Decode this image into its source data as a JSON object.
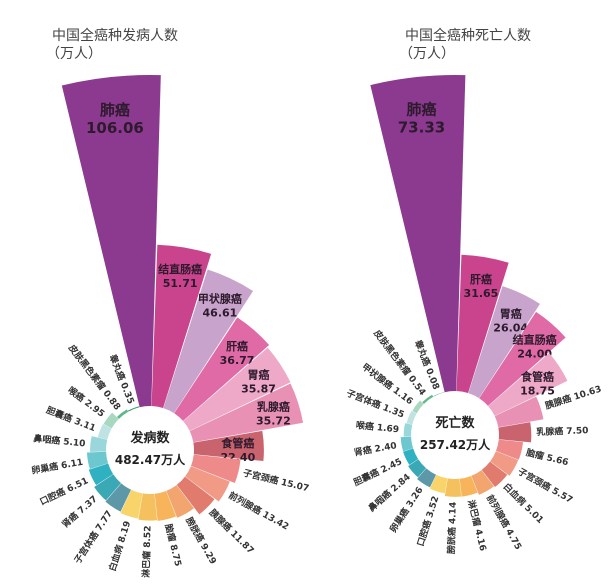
{
  "chart_data": [
    {
      "type": "radial_bar",
      "title": "中国全癌种发病人数",
      "subtitle": "（万人）",
      "center_label": "发病数",
      "total": {
        "value": 482.47,
        "label": "482.47万人"
      },
      "categories": [
        "肺癌",
        "结直肠癌",
        "甲状腺癌",
        "肝癌",
        "胃癌",
        "乳腺癌",
        "食管癌",
        "子宫颈癌",
        "前列腺癌",
        "胰腺癌",
        "膀胱癌",
        "脑瘤",
        "淋巴瘤",
        "白血病",
        "子宫体癌",
        "肾癌",
        "口腔癌",
        "卵巢癌",
        "鼻咽癌",
        "胆囊癌",
        "喉癌",
        "皮肤黑色素瘤",
        "睾丸癌"
      ],
      "values": [
        106.06,
        51.71,
        46.61,
        36.77,
        35.87,
        35.72,
        22.4,
        15.07,
        13.42,
        11.87,
        9.29,
        8.75,
        8.52,
        8.19,
        7.77,
        7.37,
        6.51,
        6.11,
        5.1,
        3.11,
        2.95,
        0.88,
        0.35
      ],
      "value_labels": [
        "106.06",
        "51.71",
        "46.61",
        "36.77",
        "35.87",
        "35.72",
        "22.40",
        "15.07",
        "13.42",
        "11.87",
        "9.29",
        "8.75",
        "8.52",
        "8.19",
        "7.77",
        "7.37",
        "6.51",
        "6.11",
        "5.10",
        "3.11",
        "2.95",
        "0.88",
        "0.35"
      ],
      "colors": [
        "#8b3a8f",
        "#c9448c",
        "#c8a3cc",
        "#e06aa6",
        "#eea8c8",
        "#e891b4",
        "#c9646f",
        "#ee8a8a",
        "#f19b86",
        "#e07b6e",
        "#f2a56e",
        "#f7b45a",
        "#f5c15e",
        "#f9d46b",
        "#5c98a8",
        "#3aa8b5",
        "#2fb1c2",
        "#6dc7cf",
        "#9ad7dc",
        "#bfe3e3",
        "#a8d8c0",
        "#5fb88a",
        "#2f9e6b"
      ]
    },
    {
      "type": "radial_bar",
      "title": "中国全癌种死亡人数",
      "subtitle": "（万人）",
      "center_label": "死亡数",
      "total": {
        "value": 257.42,
        "label": "257.42万人"
      },
      "categories": [
        "肺癌",
        "肝癌",
        "胃癌",
        "结直肠癌",
        "食管癌",
        "胰腺癌",
        "乳腺癌",
        "脑瘤",
        "子宫颈癌",
        "白血病",
        "前列腺癌",
        "淋巴瘤",
        "膀胱癌",
        "口腔癌",
        "卵巢癌",
        "鼻咽癌",
        "胆囊癌",
        "肾癌",
        "喉癌",
        "子宫体癌",
        "甲状腺癌",
        "皮肤黑色素瘤",
        "睾丸癌"
      ],
      "values": [
        73.33,
        31.65,
        26.04,
        24.0,
        18.75,
        10.63,
        7.5,
        5.66,
        5.57,
        5.01,
        4.75,
        4.16,
        4.14,
        3.52,
        3.26,
        2.84,
        2.45,
        2.4,
        1.69,
        1.35,
        1.16,
        0.54,
        0.08
      ],
      "value_labels": [
        "73.33",
        "31.65",
        "26.04",
        "24.00",
        "18.75",
        "10.63",
        "7.50",
        "5.66",
        "5.57",
        "5.01",
        "4.75",
        "4.16",
        "4.14",
        "3.52",
        "3.26",
        "2.84",
        "2.45",
        "2.40",
        "1.69",
        "1.35",
        "1.16",
        "0.54",
        "0.08"
      ],
      "colors": [
        "#8b3a8f",
        "#c9448c",
        "#c8a3cc",
        "#e06aa6",
        "#eea8c8",
        "#e891b4",
        "#c9646f",
        "#ee8a8a",
        "#f19b86",
        "#e07b6e",
        "#f2a56e",
        "#f7b45a",
        "#f5c15e",
        "#f9d46b",
        "#5c98a8",
        "#3aa8b5",
        "#2fb1c2",
        "#6dc7cf",
        "#9ad7dc",
        "#bfe3e3",
        "#a8d8c0",
        "#5fb88a",
        "#2f9e6b"
      ]
    }
  ]
}
